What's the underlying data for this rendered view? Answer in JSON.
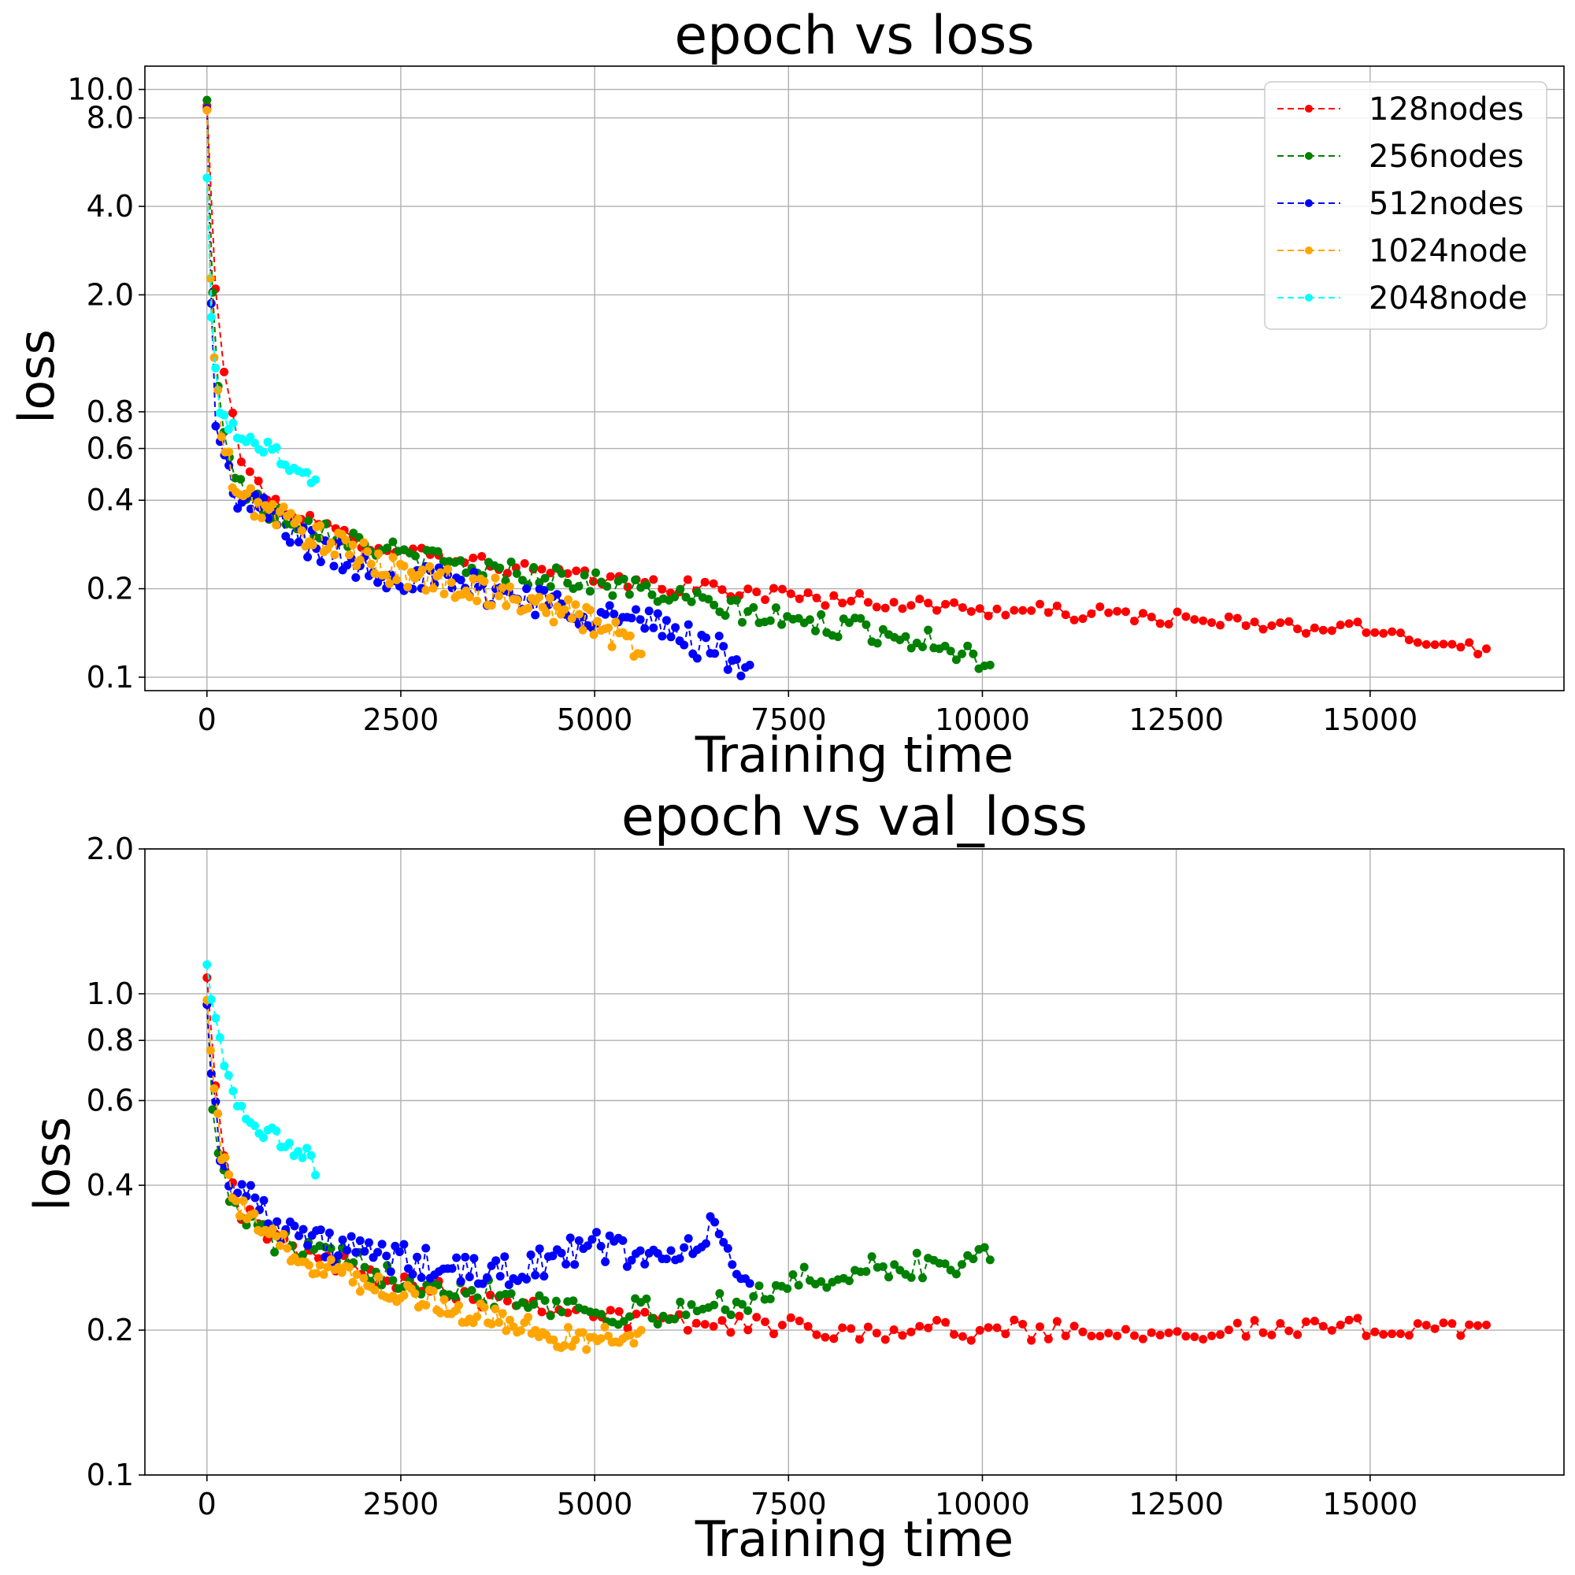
{
  "figure": {
    "charts": [
      {
        "title": "epoch vs loss",
        "xlabel": "Training time",
        "ylabel": "loss"
      },
      {
        "title": "epoch vs val_loss",
        "xlabel": "Training time",
        "ylabel": "loss"
      }
    ],
    "legend_labels": [
      "128nodes",
      "256nodes",
      "512nodes",
      "1024node",
      "2048node"
    ]
  },
  "chart_data": [
    {
      "type": "line",
      "title": "epoch vs loss",
      "xlabel": "Training time",
      "ylabel": "loss",
      "xlim": [
        -800,
        17500
      ],
      "ylim": [
        0.09,
        12.0
      ],
      "yscale": "log",
      "xticks": [
        0,
        2500,
        5000,
        7500,
        10000,
        12500,
        15000
      ],
      "yticks": [
        0.1,
        0.2,
        0.4,
        0.6,
        0.8,
        2.0,
        4.0,
        8.0,
        10.0
      ],
      "ytick_labels": [
        "0.1",
        "0.2",
        "0.4",
        "0.6",
        "0.8",
        "2.0",
        "4.0",
        "8.0",
        "10.0"
      ],
      "grid": true,
      "legend_position": "upper right",
      "line_style": "dashed with circle markers",
      "series": [
        {
          "name": "128nodes",
          "color": "#ff0000",
          "n_points": 150,
          "anchors": [
            [
              0,
              8.8
            ],
            [
              100,
              2.2
            ],
            [
              200,
              1.2
            ],
            [
              400,
              0.6
            ],
            [
              700,
              0.42
            ],
            [
              1000,
              0.38
            ],
            [
              1500,
              0.32
            ],
            [
              2000,
              0.29
            ],
            [
              3000,
              0.26
            ],
            [
              4000,
              0.235
            ],
            [
              5000,
              0.215
            ],
            [
              6000,
              0.205
            ],
            [
              7500,
              0.19
            ],
            [
              9000,
              0.178
            ],
            [
              10000,
              0.17
            ],
            [
              12000,
              0.162
            ],
            [
              13500,
              0.15
            ],
            [
              15000,
              0.145
            ],
            [
              16500,
              0.125
            ]
          ],
          "noise": 0.06
        },
        {
          "name": "256nodes",
          "color": "#008000",
          "n_points": 140,
          "anchors": [
            [
              0,
              9.2
            ],
            [
              50,
              2.5
            ],
            [
              150,
              0.9
            ],
            [
              300,
              0.55
            ],
            [
              500,
              0.42
            ],
            [
              800,
              0.37
            ],
            [
              1200,
              0.34
            ],
            [
              1800,
              0.3
            ],
            [
              2500,
              0.26
            ],
            [
              3500,
              0.235
            ],
            [
              4500,
              0.22
            ],
            [
              5500,
              0.2
            ],
            [
              6500,
              0.175
            ],
            [
              7500,
              0.155
            ],
            [
              8500,
              0.145
            ],
            [
              9500,
              0.13
            ],
            [
              10100,
              0.11
            ]
          ],
          "noise": 0.09
        },
        {
          "name": "512nodes",
          "color": "#0000ff",
          "n_points": 125,
          "anchors": [
            [
              0,
              8.6
            ],
            [
              50,
              2.0
            ],
            [
              100,
              0.85
            ],
            [
              200,
              0.55
            ],
            [
              400,
              0.4
            ],
            [
              800,
              0.36
            ],
            [
              1200,
              0.3
            ],
            [
              1600,
              0.26
            ],
            [
              2200,
              0.23
            ],
            [
              3000,
              0.21
            ],
            [
              4000,
              0.19
            ],
            [
              5000,
              0.165
            ],
            [
              6000,
              0.145
            ],
            [
              6500,
              0.125
            ],
            [
              7000,
              0.11
            ]
          ],
          "noise": 0.13
        },
        {
          "name": "1024node",
          "color": "#ffa500",
          "n_points": 120,
          "anchors": [
            [
              0,
              8.5
            ],
            [
              50,
              2.0
            ],
            [
              120,
              0.95
            ],
            [
              250,
              0.55
            ],
            [
              400,
              0.42
            ],
            [
              800,
              0.37
            ],
            [
              1200,
              0.32
            ],
            [
              1800,
              0.27
            ],
            [
              2500,
              0.225
            ],
            [
              3500,
              0.2
            ],
            [
              4500,
              0.17
            ],
            [
              5000,
              0.155
            ],
            [
              5600,
              0.12
            ]
          ],
          "noise": 0.12
        },
        {
          "name": "2048node",
          "color": "#00ffff",
          "n_points": 26,
          "anchors": [
            [
              0,
              5.0
            ],
            [
              60,
              1.5
            ],
            [
              150,
              0.85
            ],
            [
              250,
              0.75
            ],
            [
              500,
              0.65
            ],
            [
              800,
              0.6
            ],
            [
              1100,
              0.52
            ],
            [
              1400,
              0.47
            ]
          ],
          "noise": 0.08
        }
      ]
    },
    {
      "type": "line",
      "title": "epoch vs val_loss",
      "xlabel": "Training time",
      "ylabel": "loss",
      "xlim": [
        -800,
        17500
      ],
      "ylim": [
        0.1,
        2.0
      ],
      "yscale": "log",
      "xticks": [
        0,
        2500,
        5000,
        7500,
        10000,
        12500,
        15000
      ],
      "yticks": [
        0.1,
        0.2,
        0.4,
        0.6,
        0.8,
        1.0,
        2.0
      ],
      "ytick_labels": [
        "0.1",
        "0.2",
        "0.4",
        "0.6",
        "0.8",
        "1.0",
        "2.0"
      ],
      "grid": true,
      "line_style": "dashed with circle markers",
      "series": [
        {
          "name": "128nodes",
          "color": "#ff0000",
          "n_points": 150,
          "anchors": [
            [
              0,
              1.08
            ],
            [
              100,
              0.7
            ],
            [
              200,
              0.5
            ],
            [
              400,
              0.36
            ],
            [
              800,
              0.31
            ],
            [
              1500,
              0.28
            ],
            [
              2500,
              0.255
            ],
            [
              3500,
              0.235
            ],
            [
              4500,
              0.225
            ],
            [
              5500,
              0.21
            ],
            [
              7000,
              0.205
            ],
            [
              8500,
              0.2
            ],
            [
              10000,
              0.2
            ],
            [
              12000,
              0.2
            ],
            [
              14000,
              0.2
            ],
            [
              16500,
              0.205
            ]
          ],
          "noise": 0.05
        },
        {
          "name": "256nodes",
          "color": "#008000",
          "n_points": 140,
          "anchors": [
            [
              0,
              0.95
            ],
            [
              100,
              0.52
            ],
            [
              250,
              0.38
            ],
            [
              500,
              0.34
            ],
            [
              1000,
              0.3
            ],
            [
              2000,
              0.27
            ],
            [
              3000,
              0.25
            ],
            [
              4000,
              0.235
            ],
            [
              5000,
              0.22
            ],
            [
              6000,
              0.215
            ],
            [
              7000,
              0.235
            ],
            [
              8000,
              0.26
            ],
            [
              9000,
              0.27
            ],
            [
              10100,
              0.28
            ]
          ],
          "noise": 0.07
        },
        {
          "name": "512nodes",
          "color": "#0000ff",
          "n_points": 125,
          "anchors": [
            [
              0,
              0.95
            ],
            [
              100,
              0.6
            ],
            [
              200,
              0.42
            ],
            [
              400,
              0.4
            ],
            [
              700,
              0.36
            ],
            [
              1000,
              0.33
            ],
            [
              1500,
              0.3
            ],
            [
              2500,
              0.28
            ],
            [
              3500,
              0.26
            ],
            [
              4500,
              0.28
            ],
            [
              5000,
              0.3
            ],
            [
              6000,
              0.28
            ],
            [
              6500,
              0.32
            ],
            [
              7000,
              0.25
            ]
          ],
          "noise": 0.08
        },
        {
          "name": "1024node",
          "color": "#ffa500",
          "n_points": 120,
          "anchors": [
            [
              0,
              0.97
            ],
            [
              100,
              0.65
            ],
            [
              200,
              0.45
            ],
            [
              400,
              0.36
            ],
            [
              800,
              0.31
            ],
            [
              1500,
              0.27
            ],
            [
              2500,
              0.24
            ],
            [
              3500,
              0.215
            ],
            [
              4200,
              0.2
            ],
            [
              4800,
              0.19
            ],
            [
              5600,
              0.2
            ]
          ],
          "noise": 0.06
        },
        {
          "name": "2048node",
          "color": "#00ffff",
          "n_points": 26,
          "anchors": [
            [
              0,
              1.15
            ],
            [
              100,
              0.92
            ],
            [
              200,
              0.72
            ],
            [
              400,
              0.6
            ],
            [
              700,
              0.53
            ],
            [
              1000,
              0.48
            ],
            [
              1300,
              0.46
            ],
            [
              1400,
              0.42
            ]
          ],
          "noise": 0.05
        }
      ]
    }
  ]
}
